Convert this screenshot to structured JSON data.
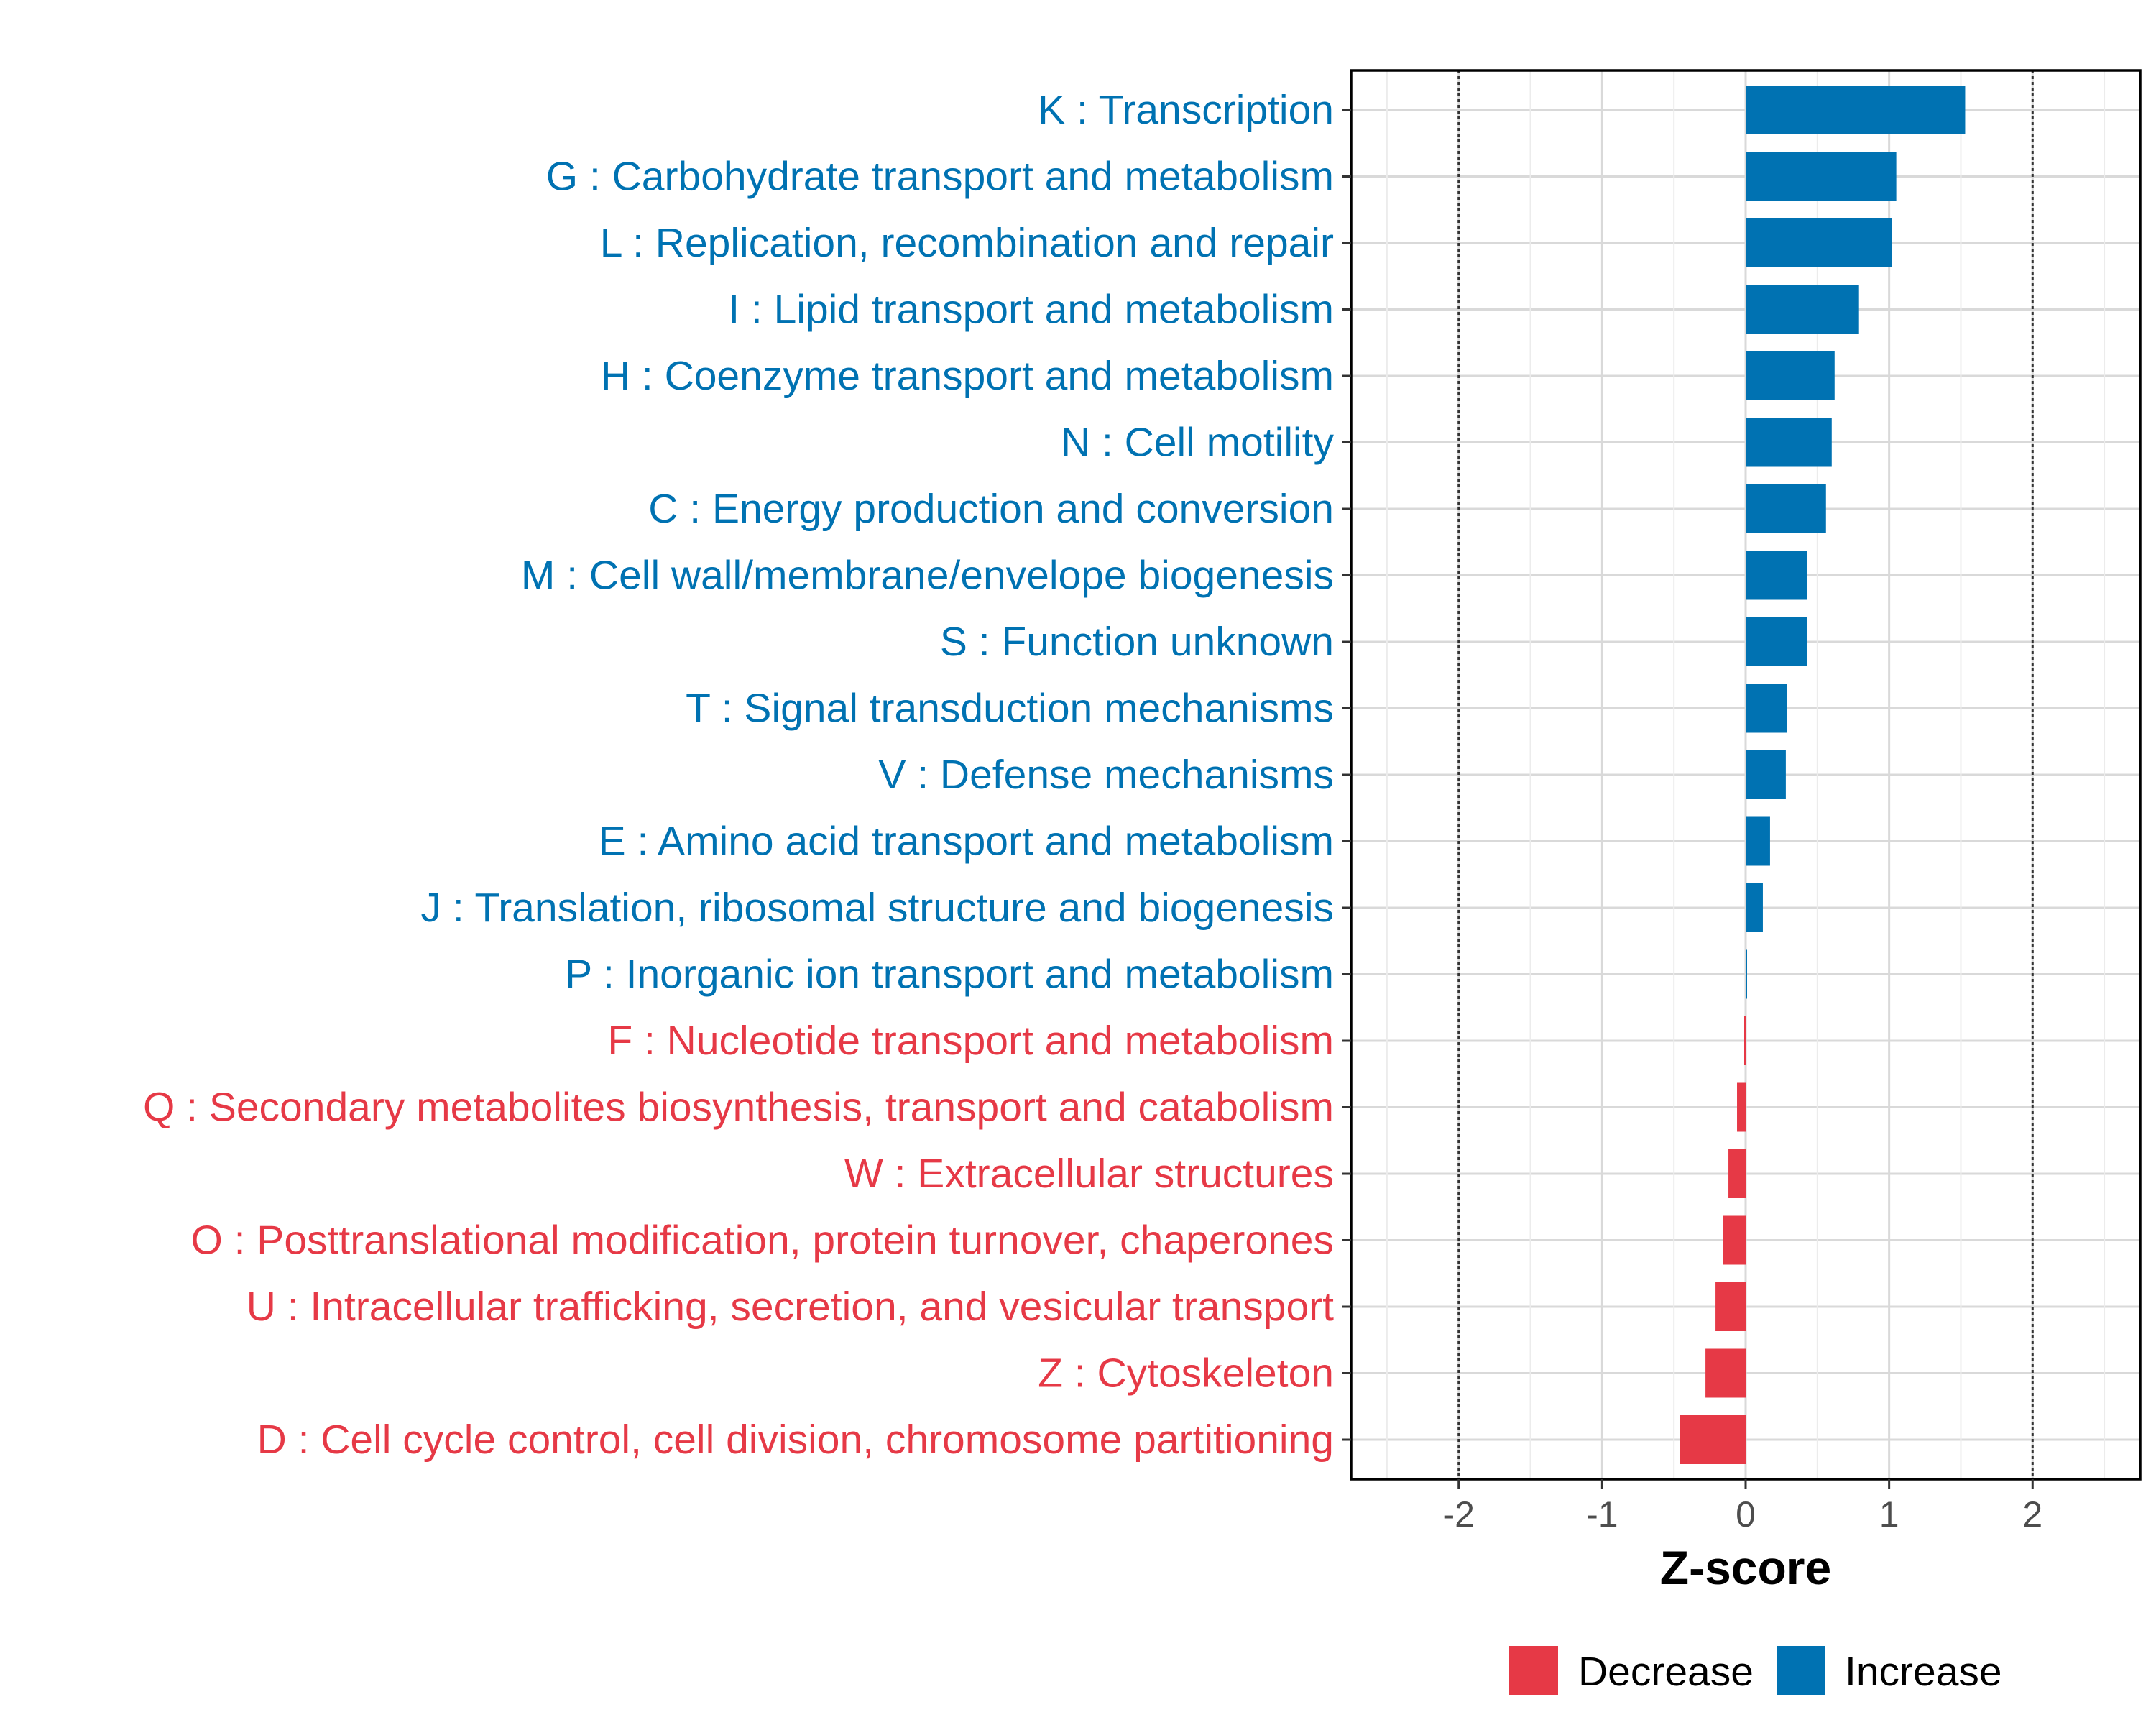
{
  "chart_data": {
    "type": "bar",
    "orientation": "horizontal",
    "title": "",
    "xlabel": "Z-score",
    "ylabel": "",
    "xlim": [
      -2.75,
      2.75
    ],
    "x_ticks": [
      -2,
      -1,
      0,
      1,
      2
    ],
    "x_tick_labels": [
      "-2",
      "-1",
      "0",
      "1",
      "2"
    ],
    "reference_lines": [
      -2,
      2
    ],
    "grid": true,
    "legend_position": "bottom",
    "colors": {
      "Increase": "#0072B2",
      "Decrease": "#E63946"
    },
    "legend": [
      "Decrease",
      "Increase"
    ],
    "categories": [
      "K : Transcription",
      "G : Carbohydrate transport and metabolism",
      "L : Replication, recombination and repair",
      "I : Lipid transport and metabolism",
      "H : Coenzyme transport and metabolism",
      "N : Cell motility",
      "C : Energy production and conversion",
      "M : Cell wall/membrane/envelope biogenesis",
      "S : Function unknown",
      "T : Signal transduction mechanisms",
      "V : Defense mechanisms",
      "E : Amino acid transport and metabolism",
      "J : Translation, ribosomal structure and biogenesis",
      "P : Inorganic ion transport and metabolism",
      "F : Nucleotide transport and metabolism",
      "Q : Secondary metabolites biosynthesis, transport and catabolism",
      "W : Extracellular structures",
      "O : Posttranslational modification, protein turnover, chaperones",
      "U : Intracellular trafficking, secretion, and vesicular transport",
      "Z : Cytoskeleton",
      "D : Cell cycle control, cell division, chromosome partitioning"
    ],
    "values": [
      1.53,
      1.05,
      1.02,
      0.79,
      0.62,
      0.6,
      0.56,
      0.43,
      0.43,
      0.29,
      0.28,
      0.17,
      0.12,
      0.01,
      -0.01,
      -0.06,
      -0.12,
      -0.16,
      -0.21,
      -0.28,
      -0.46
    ],
    "groups": [
      "Increase",
      "Increase",
      "Increase",
      "Increase",
      "Increase",
      "Increase",
      "Increase",
      "Increase",
      "Increase",
      "Increase",
      "Increase",
      "Increase",
      "Increase",
      "Increase",
      "Decrease",
      "Decrease",
      "Decrease",
      "Decrease",
      "Decrease",
      "Decrease",
      "Decrease"
    ]
  }
}
